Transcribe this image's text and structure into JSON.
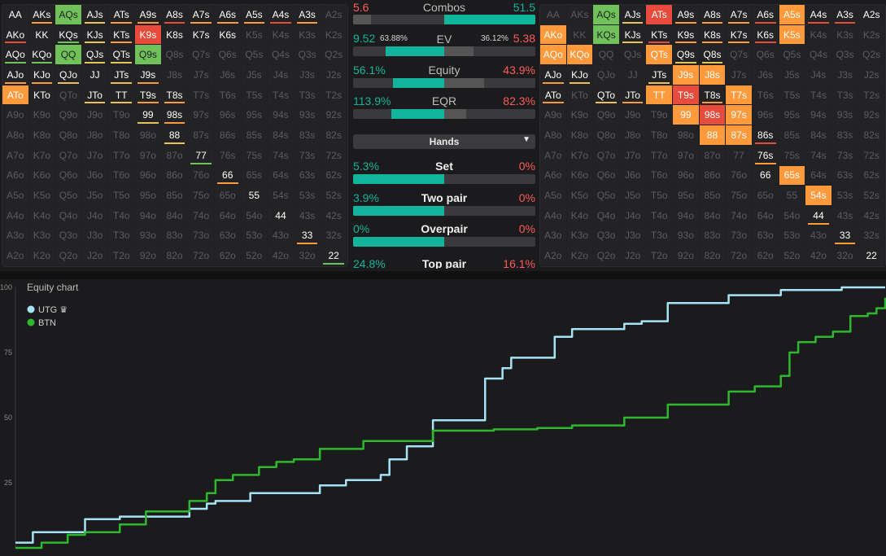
{
  "colors": {
    "green": "#71c15a",
    "green_under": "#6dc45a",
    "orange": "#ff9a3c",
    "orange_under": "#ff9a3c",
    "red": "#e64b3c",
    "red_under": "#e64b3c",
    "yellow_under": "#e8c25a",
    "teal": "#12b59b",
    "stat_red": "#ff5b5b",
    "utg_line": "#a6e4f5",
    "btn_line": "#2db82d"
  },
  "left_grid": {
    "rows": [
      [
        "AA",
        "AKs",
        "AQs",
        "AJs",
        "ATs",
        "A9s",
        "A8s",
        "A7s",
        "A6s",
        "A5s",
        "A4s",
        "A3s",
        "A2s"
      ],
      [
        "AKo",
        "KK",
        "KQs",
        "KJs",
        "KTs",
        "K9s",
        "K8s",
        "K7s",
        "K6s",
        "K5s",
        "K4s",
        "K3s",
        "K2s"
      ],
      [
        "AQo",
        "KQo",
        "QQ",
        "QJs",
        "QTs",
        "Q9s",
        "Q8s",
        "Q7s",
        "Q6s",
        "Q5s",
        "Q4s",
        "Q3s",
        "Q2s"
      ],
      [
        "AJo",
        "KJo",
        "QJo",
        "JJ",
        "JTs",
        "J9s",
        "J8s",
        "J7s",
        "J6s",
        "J5s",
        "J4s",
        "J3s",
        "J2s"
      ],
      [
        "ATo",
        "KTo",
        "QTo",
        "JTo",
        "TT",
        "T9s",
        "T8s",
        "T7s",
        "T6s",
        "T5s",
        "T4s",
        "T3s",
        "T2s"
      ],
      [
        "A9o",
        "K9o",
        "Q9o",
        "J9o",
        "T9o",
        "99",
        "98s",
        "97s",
        "96s",
        "95s",
        "94s",
        "93s",
        "92s"
      ],
      [
        "A8o",
        "K8o",
        "Q8o",
        "J8o",
        "T8o",
        "98o",
        "88",
        "87s",
        "86s",
        "85s",
        "84s",
        "83s",
        "82s"
      ],
      [
        "A7o",
        "K7o",
        "Q7o",
        "J7o",
        "T7o",
        "97o",
        "87o",
        "77",
        "76s",
        "75s",
        "74s",
        "73s",
        "72s"
      ],
      [
        "A6o",
        "K6o",
        "Q6o",
        "J6o",
        "T6o",
        "96o",
        "86o",
        "76o",
        "66",
        "65s",
        "64s",
        "63s",
        "62s"
      ],
      [
        "A5o",
        "K5o",
        "Q5o",
        "J5o",
        "T5o",
        "95o",
        "85o",
        "75o",
        "65o",
        "55",
        "54s",
        "53s",
        "52s"
      ],
      [
        "A4o",
        "K4o",
        "Q4o",
        "J4o",
        "T4o",
        "94o",
        "84o",
        "74o",
        "64o",
        "54o",
        "44",
        "43s",
        "42s"
      ],
      [
        "A3o",
        "K3o",
        "Q3o",
        "J3o",
        "T3o",
        "93o",
        "83o",
        "73o",
        "63o",
        "53o",
        "43o",
        "33",
        "32s"
      ],
      [
        "A2o",
        "K2o",
        "Q2o",
        "J2o",
        "T2o",
        "92o",
        "82o",
        "72o",
        "62o",
        "52o",
        "42o",
        "32o",
        "22"
      ]
    ],
    "state": [
      [
        "w",
        "w",
        "g",
        "w",
        "w",
        "w",
        "w",
        "w",
        "w",
        "w",
        "w",
        "w",
        "d"
      ],
      [
        "w",
        "w",
        "w",
        "w",
        "w",
        "r",
        "w",
        "w",
        "w",
        "d",
        "d",
        "d",
        "d"
      ],
      [
        "w",
        "w",
        "g",
        "w",
        "w",
        "g",
        "d",
        "d",
        "d",
        "d",
        "d",
        "d",
        "d"
      ],
      [
        "w",
        "w",
        "w",
        "w",
        "w",
        "w",
        "d",
        "d",
        "d",
        "d",
        "d",
        "d",
        "d"
      ],
      [
        "o",
        "w",
        "d",
        "w",
        "w",
        "w",
        "w",
        "d",
        "d",
        "d",
        "d",
        "d",
        "d"
      ],
      [
        "d",
        "d",
        "d",
        "d",
        "d",
        "w",
        "w",
        "d",
        "d",
        "d",
        "d",
        "d",
        "d"
      ],
      [
        "d",
        "d",
        "d",
        "d",
        "d",
        "d",
        "w",
        "d",
        "d",
        "d",
        "d",
        "d",
        "d"
      ],
      [
        "d",
        "d",
        "d",
        "d",
        "d",
        "d",
        "d",
        "w",
        "d",
        "d",
        "d",
        "d",
        "d"
      ],
      [
        "d",
        "d",
        "d",
        "d",
        "d",
        "d",
        "d",
        "d",
        "w",
        "d",
        "d",
        "d",
        "d"
      ],
      [
        "d",
        "d",
        "d",
        "d",
        "d",
        "d",
        "d",
        "d",
        "d",
        "w",
        "d",
        "d",
        "d"
      ],
      [
        "d",
        "d",
        "d",
        "d",
        "d",
        "d",
        "d",
        "d",
        "d",
        "d",
        "w",
        "d",
        "d"
      ],
      [
        "d",
        "d",
        "d",
        "d",
        "d",
        "d",
        "d",
        "d",
        "d",
        "d",
        "d",
        "w",
        "d"
      ],
      [
        "d",
        "d",
        "d",
        "d",
        "d",
        "d",
        "d",
        "d",
        "d",
        "d",
        "d",
        "d",
        "w"
      ]
    ],
    "under": [
      [
        "",
        "o",
        "g",
        "y",
        "o",
        "o",
        "r",
        "o",
        "o",
        "o",
        "r",
        "o",
        ""
      ],
      [
        "r",
        "",
        "g",
        "y",
        "o",
        "r",
        "",
        "",
        "",
        "",
        "",
        "",
        ""
      ],
      [
        "g",
        "g",
        "g",
        "y",
        "y",
        "g",
        "",
        "",
        "",
        "",
        "",
        "",
        ""
      ],
      [
        "o",
        "o",
        "y",
        "",
        "y",
        "o",
        "",
        "",
        "",
        "",
        "",
        "",
        ""
      ],
      [
        "o",
        "",
        "",
        "y",
        "y",
        "o",
        "o",
        "",
        "",
        "",
        "",
        "",
        ""
      ],
      [
        "",
        "",
        "",
        "",
        "",
        "y",
        "o",
        "",
        "",
        "",
        "",
        "",
        ""
      ],
      [
        "",
        "",
        "",
        "",
        "",
        "",
        "y",
        "",
        "",
        "",
        "",
        "",
        ""
      ],
      [
        "",
        "",
        "",
        "",
        "",
        "",
        "",
        "g",
        "",
        "",
        "",
        "",
        ""
      ],
      [
        "",
        "",
        "",
        "",
        "",
        "",
        "",
        "",
        "o",
        "",
        "",
        "",
        ""
      ],
      [
        "",
        "",
        "",
        "",
        "",
        "",
        "",
        "",
        "",
        "",
        "",
        "",
        ""
      ],
      [
        "",
        "",
        "",
        "",
        "",
        "",
        "",
        "",
        "",
        "",
        "",
        "",
        ""
      ],
      [
        "",
        "",
        "",
        "",
        "",
        "",
        "",
        "",
        "",
        "",
        "",
        "o",
        ""
      ],
      [
        "",
        "",
        "",
        "",
        "",
        "",
        "",
        "",
        "",
        "",
        "",
        "",
        "g"
      ]
    ]
  },
  "right_grid": {
    "state": [
      [
        "d",
        "d",
        "g",
        "w",
        "r",
        "w",
        "w",
        "w",
        "w",
        "o",
        "w",
        "w",
        "w"
      ],
      [
        "o",
        "d",
        "g",
        "w",
        "w",
        "w",
        "w",
        "w",
        "w",
        "o",
        "d",
        "d",
        "d"
      ],
      [
        "o",
        "o",
        "d",
        "d",
        "o",
        "w",
        "w",
        "d",
        "d",
        "d",
        "d",
        "d",
        "d"
      ],
      [
        "w",
        "w",
        "d",
        "d",
        "w",
        "o",
        "o",
        "d",
        "d",
        "d",
        "d",
        "d",
        "d"
      ],
      [
        "w",
        "d",
        "w",
        "w",
        "o",
        "r",
        "w",
        "o",
        "d",
        "d",
        "d",
        "d",
        "d"
      ],
      [
        "d",
        "d",
        "d",
        "d",
        "d",
        "o",
        "r",
        "o",
        "d",
        "d",
        "d",
        "d",
        "d"
      ],
      [
        "d",
        "d",
        "d",
        "d",
        "d",
        "d",
        "o",
        "o",
        "w",
        "d",
        "d",
        "d",
        "d"
      ],
      [
        "d",
        "d",
        "d",
        "d",
        "d",
        "d",
        "d",
        "d",
        "w",
        "d",
        "d",
        "d",
        "d"
      ],
      [
        "d",
        "d",
        "d",
        "d",
        "d",
        "d",
        "d",
        "d",
        "w",
        "o",
        "d",
        "d",
        "d"
      ],
      [
        "d",
        "d",
        "d",
        "d",
        "d",
        "d",
        "d",
        "d",
        "d",
        "d",
        "o",
        "d",
        "d"
      ],
      [
        "d",
        "d",
        "d",
        "d",
        "d",
        "d",
        "d",
        "d",
        "d",
        "d",
        "w",
        "d",
        "d"
      ],
      [
        "d",
        "d",
        "d",
        "d",
        "d",
        "d",
        "d",
        "d",
        "d",
        "d",
        "d",
        "w",
        "d"
      ],
      [
        "d",
        "d",
        "d",
        "d",
        "d",
        "d",
        "d",
        "d",
        "d",
        "d",
        "d",
        "d",
        "w"
      ]
    ],
    "under": [
      [
        "",
        "",
        "g",
        "y",
        "",
        "o",
        "o",
        "o",
        "r",
        "",
        "r",
        "r",
        ""
      ],
      [
        "",
        "",
        "g",
        "y",
        "r",
        "o",
        "o",
        "o",
        "r",
        "",
        "",
        "",
        ""
      ],
      [
        "",
        "",
        "",
        "",
        "",
        "y",
        "y",
        "",
        "",
        "",
        "",
        "",
        ""
      ],
      [
        "o",
        "y",
        "",
        "",
        "y",
        "",
        "",
        "",
        "",
        "",
        "",
        "",
        ""
      ],
      [
        "o",
        "",
        "y",
        "o",
        "",
        "",
        "o",
        "",
        "",
        "",
        "",
        "",
        ""
      ],
      [
        "",
        "",
        "",
        "",
        "",
        "",
        "",
        "",
        "",
        "",
        "",
        "",
        ""
      ],
      [
        "",
        "",
        "",
        "",
        "",
        "",
        "",
        "",
        "r",
        "",
        "",
        "",
        ""
      ],
      [
        "",
        "",
        "",
        "",
        "",
        "",
        "",
        "",
        "o",
        "",
        "",
        "",
        ""
      ],
      [
        "",
        "",
        "",
        "",
        "",
        "",
        "",
        "",
        "",
        "",
        "",
        "",
        ""
      ],
      [
        "",
        "",
        "",
        "",
        "",
        "",
        "",
        "",
        "",
        "",
        "o",
        "",
        ""
      ],
      [
        "",
        "",
        "",
        "",
        "",
        "",
        "",
        "",
        "",
        "",
        "o",
        "",
        ""
      ],
      [
        "",
        "",
        "",
        "",
        "",
        "",
        "",
        "",
        "",
        "",
        "",
        "o",
        ""
      ],
      [
        "",
        "",
        "",
        "",
        "",
        "",
        "",
        "",
        "",
        "",
        "",
        "",
        ""
      ]
    ]
  },
  "stats": {
    "combos": {
      "label": "Combos",
      "left": "5.6",
      "right": "51.5",
      "left_frac": 0.1,
      "right_frac": 0.5
    },
    "ev": {
      "label": "EV",
      "left": "9.52",
      "left_pct": "63.88%",
      "right_pct": "36.12%",
      "right": "5.38",
      "left_frac": 0.64
    },
    "equity": {
      "label": "Equity",
      "left": "56.1%",
      "right": "43.9%",
      "left_frac": 0.561
    },
    "eqr": {
      "label": "EQR",
      "left": "113.9%",
      "right": "82.3%",
      "left_frac": 0.5
    },
    "dropdown": {
      "label": "Hands"
    },
    "hands": [
      {
        "name": "Set",
        "left": "5.3%",
        "right": "0%",
        "left_frac": 0.5
      },
      {
        "name": "Two pair",
        "left": "3.9%",
        "right": "0%",
        "left_frac": 0.5
      },
      {
        "name": "Overpair",
        "left": "0%",
        "right": "0%",
        "left_frac": 0.5
      },
      {
        "name": "Top pair",
        "left": "24.8%",
        "right": "16.1%",
        "left_frac": 0.5
      }
    ]
  },
  "chart_data": {
    "type": "line",
    "title": "Equity chart",
    "ylim": [
      0,
      100
    ],
    "yticks": [
      "25",
      "50",
      "75",
      "100"
    ],
    "series": [
      {
        "name": "UTG",
        "crown": "♛",
        "x": [
          0,
          2,
          8,
          12,
          20,
          22,
          23,
          27,
          35,
          38,
          42,
          43,
          45,
          48,
          54,
          56,
          57,
          62,
          64,
          70,
          72,
          75,
          82,
          88,
          95,
          97,
          99,
          100
        ],
        "y": [
          2,
          6,
          11,
          12,
          15,
          17,
          18,
          21,
          24,
          26,
          28,
          34,
          39,
          49,
          65,
          69,
          73,
          81,
          84,
          86,
          87,
          94,
          97,
          99,
          100,
          100,
          100,
          100
        ]
      },
      {
        "name": "BTN",
        "x": [
          0,
          3,
          6,
          8,
          12,
          15,
          20,
          22,
          23,
          25,
          28,
          30,
          32,
          35,
          40,
          48,
          55,
          60,
          64,
          70,
          75,
          82,
          85,
          88,
          89,
          90,
          92,
          94,
          96,
          98,
          99,
          100
        ],
        "y": [
          0,
          2,
          5,
          6,
          9,
          14,
          18,
          21,
          26,
          28,
          31,
          33,
          34,
          38,
          41,
          45,
          45.5,
          46,
          47,
          50,
          55,
          60,
          62,
          66,
          75,
          79,
          81,
          83,
          89,
          90,
          92,
          96
        ]
      }
    ]
  }
}
